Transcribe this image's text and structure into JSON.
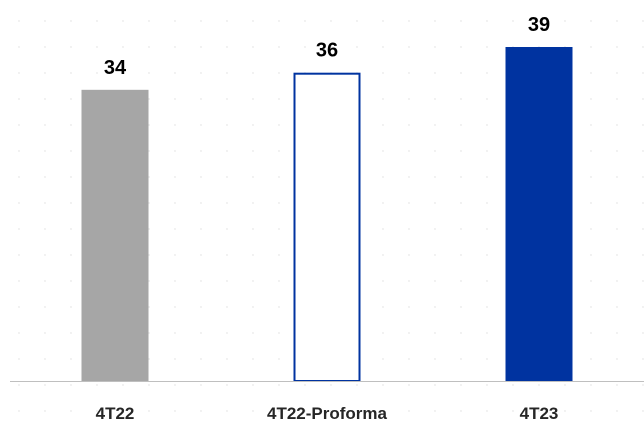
{
  "chart_data": {
    "type": "bar",
    "title": "",
    "xlabel": "",
    "ylabel": "",
    "categories": [
      "4T22",
      "4T22-Proforma",
      "4T23"
    ],
    "values": [
      34,
      36,
      39
    ],
    "value_labels": [
      "34",
      "36",
      "39"
    ],
    "ylim": [
      0,
      39
    ],
    "grid": false,
    "legend": "none",
    "bar_styles": [
      {
        "fill": "#a6a6a6",
        "stroke": "none",
        "hollow": false
      },
      {
        "fill": "#ffffff",
        "stroke": "#0033a0",
        "hollow": true
      },
      {
        "fill": "#0033a0",
        "stroke": "none",
        "hollow": false
      }
    ],
    "axis_color": "#bfbfbf"
  }
}
